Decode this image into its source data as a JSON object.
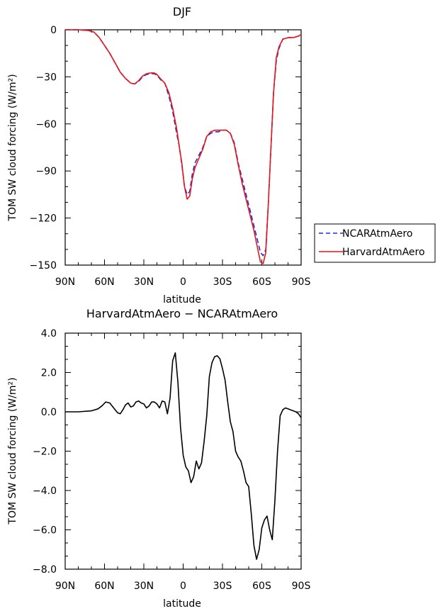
{
  "chart_data": [
    {
      "type": "line",
      "title": "DJF",
      "xlabel": "latitude",
      "ylabel": "TOM SW cloud forcing (W/m²)",
      "ylim": [
        -150,
        0
      ],
      "y_ticks": [
        "0",
        "−30",
        "−60",
        "−90",
        "−120",
        "−150"
      ],
      "y_tick_values": [
        0,
        -30,
        -60,
        -90,
        -120,
        -150
      ],
      "xlim": [
        -90,
        90
      ],
      "x_ticks": [
        "90N",
        "60N",
        "30N",
        "0",
        "30S",
        "60S",
        "90S"
      ],
      "x_tick_values": [
        -90,
        -60,
        -30,
        0,
        30,
        60,
        90
      ],
      "legend": "right",
      "series": [
        {
          "name": "NCARAtmAero",
          "color": "#1f2fd6",
          "dash": "dashed",
          "x": [
            -90,
            -80,
            -72,
            -68,
            -64,
            -60,
            -56,
            -52,
            -48,
            -44,
            -40,
            -37,
            -34,
            -31,
            -28,
            -25,
            -22,
            -20,
            -17,
            -14,
            -11,
            -8,
            -5,
            -3,
            -1,
            1,
            3,
            5,
            7,
            9,
            12,
            15,
            18,
            21,
            24,
            27,
            30,
            33,
            36,
            39,
            42,
            45,
            48,
            51,
            54,
            57,
            59,
            61,
            63,
            65,
            67,
            69,
            71,
            73,
            76,
            80,
            84,
            88,
            90
          ],
          "y": [
            0,
            0,
            -0.5,
            -1.5,
            -5,
            -10,
            -15,
            -21,
            -27,
            -31,
            -34,
            -34.5,
            -33,
            -30,
            -28.5,
            -28,
            -28,
            -29,
            -32,
            -34,
            -42,
            -52,
            -66,
            -74,
            -86,
            -100,
            -105,
            -103,
            -92,
            -85,
            -80,
            -75,
            -68,
            -66,
            -65,
            -65,
            -64,
            -64,
            -66,
            -72,
            -85,
            -95,
            -105,
            -115,
            -125,
            -135,
            -142,
            -144,
            -140,
            -110,
            -75,
            -40,
            -20,
            -12,
            -6,
            -5,
            -5,
            -4,
            -3
          ]
        },
        {
          "name": "HarvardAtmAero",
          "color": "#e8141a",
          "dash": "solid",
          "x": [
            -90,
            -80,
            -72,
            -68,
            -64,
            -60,
            -56,
            -52,
            -48,
            -44,
            -40,
            -37,
            -34,
            -31,
            -28,
            -25,
            -22,
            -20,
            -17,
            -14,
            -11,
            -8,
            -5,
            -3,
            -1,
            1,
            3,
            5,
            7,
            9,
            12,
            15,
            18,
            21,
            24,
            27,
            30,
            33,
            36,
            39,
            42,
            45,
            48,
            51,
            54,
            57,
            59,
            61,
            63,
            65,
            67,
            69,
            71,
            73,
            76,
            80,
            84,
            88,
            90
          ],
          "y": [
            0,
            0,
            -0.5,
            -1.5,
            -5,
            -10,
            -15,
            -21,
            -27,
            -31,
            -34,
            -34.5,
            -32.5,
            -29.5,
            -28,
            -27.5,
            -27.5,
            -28.5,
            -31.5,
            -34,
            -40,
            -50,
            -63,
            -74,
            -85,
            -100,
            -108,
            -106,
            -95,
            -88,
            -82,
            -76,
            -68,
            -65,
            -64,
            -64,
            -64,
            -64,
            -66,
            -73,
            -86,
            -98,
            -108,
            -118,
            -128,
            -140,
            -148,
            -149,
            -142,
            -110,
            -75,
            -40,
            -18,
            -11,
            -6,
            -5,
            -5,
            -4,
            -3
          ]
        }
      ]
    },
    {
      "type": "line",
      "title": "HarvardAtmAero − NCARAtmAero",
      "xlabel": "latitude",
      "ylabel": "TOM SW cloud forcing (W/m²)",
      "ylim": [
        -8,
        4
      ],
      "y_ticks": [
        "4.0",
        "2.0",
        "0.0",
        "−2.0",
        "−4.0",
        "−6.0",
        "−8.0"
      ],
      "y_tick_values": [
        4,
        2,
        0,
        -2,
        -4,
        -6,
        -8
      ],
      "xlim": [
        -90,
        90
      ],
      "x_ticks": [
        "90N",
        "60N",
        "30N",
        "0",
        "30S",
        "60S",
        "90S"
      ],
      "x_tick_values": [
        -90,
        -60,
        -30,
        0,
        30,
        60,
        90
      ],
      "series": [
        {
          "color": "#000000",
          "dash": "solid",
          "x": [
            -90,
            -80,
            -70,
            -65,
            -62,
            -59,
            -56,
            -53,
            -50,
            -48,
            -46,
            -44,
            -42,
            -40,
            -38,
            -36,
            -34,
            -32,
            -30,
            -28,
            -26,
            -24,
            -22,
            -20,
            -18,
            -16,
            -14,
            -12,
            -10,
            -8,
            -6,
            -4,
            -2,
            0,
            2,
            4,
            6,
            8,
            10,
            12,
            14,
            16,
            18,
            20,
            22,
            24,
            26,
            28,
            30,
            32,
            34,
            36,
            38,
            40,
            42,
            44,
            46,
            48,
            50,
            52,
            54,
            56,
            58,
            60,
            62,
            64,
            66,
            68,
            70,
            72,
            74,
            76,
            78,
            80,
            82,
            84,
            86,
            88,
            90
          ],
          "y": [
            0,
            0,
            0.05,
            0.15,
            0.3,
            0.5,
            0.45,
            0.2,
            -0.05,
            -0.1,
            0.1,
            0.35,
            0.45,
            0.25,
            0.3,
            0.5,
            0.55,
            0.45,
            0.4,
            0.2,
            0.3,
            0.5,
            0.5,
            0.4,
            0.2,
            0.55,
            0.5,
            -0.1,
            0.7,
            2.6,
            3.0,
            1.5,
            -0.8,
            -2.2,
            -2.8,
            -3.0,
            -3.6,
            -3.3,
            -2.5,
            -2.9,
            -2.6,
            -1.5,
            -0.2,
            1.8,
            2.5,
            2.8,
            2.85,
            2.7,
            2.2,
            1.6,
            0.5,
            -0.5,
            -1.0,
            -2.0,
            -2.3,
            -2.5,
            -3.0,
            -3.6,
            -3.8,
            -5.2,
            -6.8,
            -7.5,
            -7.0,
            -5.9,
            -5.5,
            -5.3,
            -6.0,
            -6.5,
            -4.5,
            -2.0,
            -0.2,
            0.1,
            0.2,
            0.15,
            0.1,
            0.05,
            0.0,
            -0.1,
            -0.3
          ]
        }
      ]
    }
  ]
}
